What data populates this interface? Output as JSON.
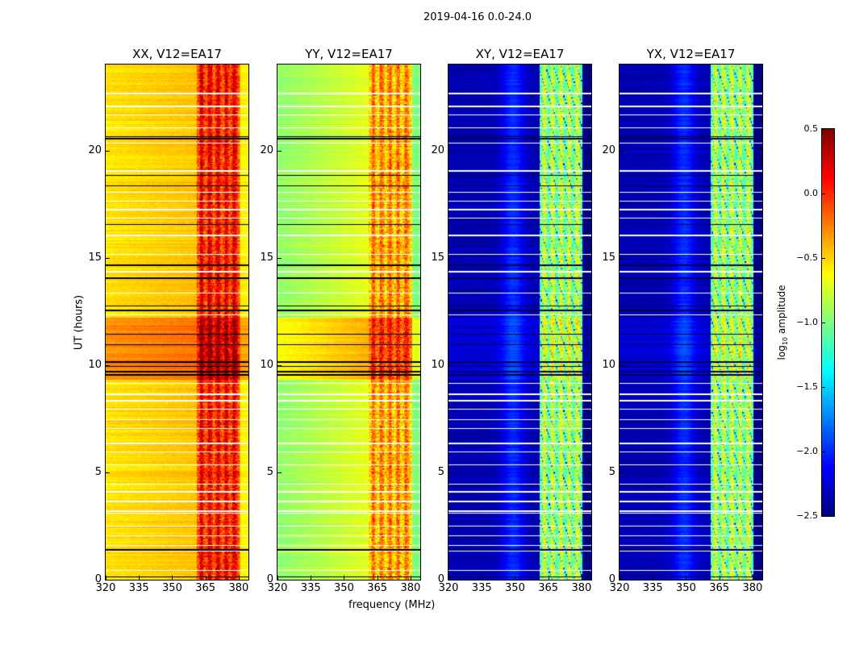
{
  "suptitle": "2019-04-16 0.0-24.0",
  "chart_data": {
    "type": "heatmap",
    "xlabel": "frequency (MHz)",
    "ylabel": "UT (hours)",
    "xlim": [
      320,
      384.4
    ],
    "ylim": [
      0,
      24
    ],
    "xticks": [
      "320",
      "335",
      "350",
      "365",
      "380"
    ],
    "yticks": [
      "0",
      "5",
      "10",
      "15",
      "20"
    ],
    "rfi_band_mhz": [
      361,
      380
    ],
    "panels": [
      {
        "title": "XX, V12=EA17",
        "base_level": -0.55,
        "rfi_level": 0.05,
        "night_boost": 0.25
      },
      {
        "title": "YY, V12=EA17",
        "base_level": -0.95,
        "rfi_level": -0.35,
        "night_boost": 0.3
      },
      {
        "title": "XY, V12=EA17",
        "base_level": -2.35,
        "rfi_level": -0.9,
        "night_boost": 0.1
      },
      {
        "title": "YX, V12=EA17",
        "base_level": -2.35,
        "rfi_level": -0.9,
        "night_boost": 0.1
      }
    ],
    "flagged_hours_white": [
      0.4,
      1.3,
      1.55,
      2.0,
      2.45,
      3.05,
      3.15,
      3.6,
      4.1,
      4.4,
      5.3,
      5.9,
      6.3,
      7.0,
      7.4,
      7.9,
      8.3,
      8.6,
      9.1,
      12.3,
      13.3,
      14.3,
      15.1,
      16.0,
      16.8,
      17.2,
      17.6,
      18.0,
      19.0,
      20.3,
      21.0,
      21.6,
      22.0,
      22.6
    ],
    "flagged_hours_black": [
      0.1,
      0.15,
      1.35,
      9.5,
      9.7,
      9.9,
      10.1,
      10.9,
      11.4,
      12.5,
      12.7,
      14.0,
      14.6,
      16.5,
      18.3,
      18.8,
      20.5,
      20.6
    ],
    "colorbar": {
      "label": "log10 amplitude",
      "range": [
        -2.5,
        0.5
      ],
      "ticks": [
        "0.5",
        "0.0",
        "−0.5",
        "−1.0",
        "−1.5",
        "−2.0",
        "−2.5"
      ],
      "colormap": "jet"
    }
  }
}
